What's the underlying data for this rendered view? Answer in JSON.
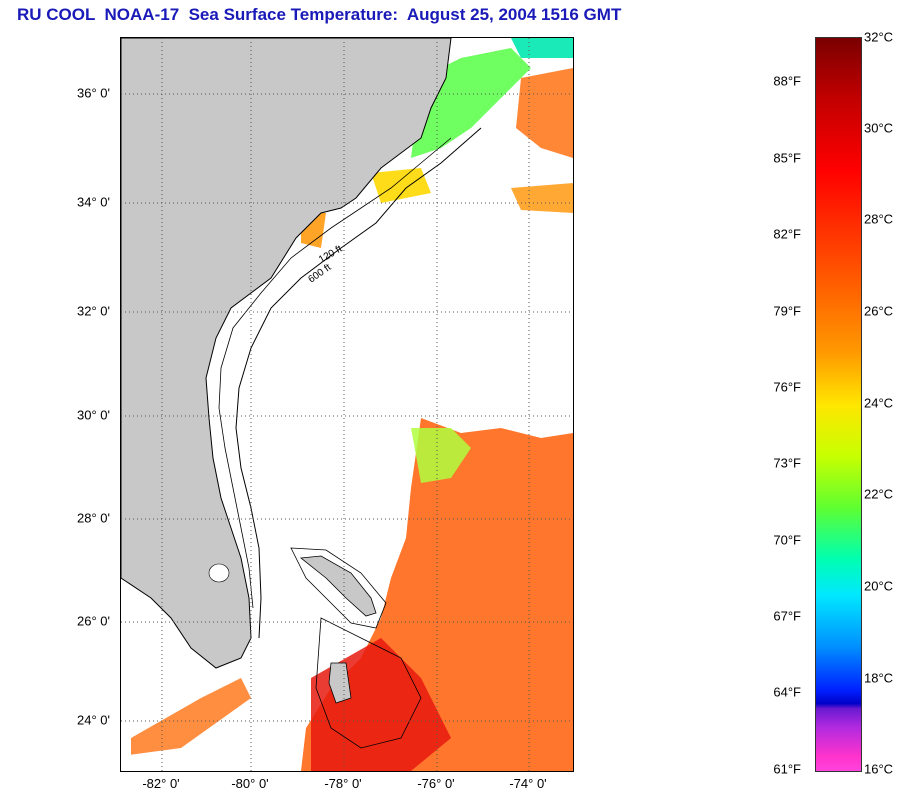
{
  "title": "RU COOL  NOAA-17  Sea Surface Temperature:  August 25, 2004 1516 GMT",
  "map": {
    "latitude_labels": [
      "36° 0'",
      "34° 0'",
      "32° 0'",
      "30° 0'",
      "28° 0'",
      "26° 0'",
      "24° 0'"
    ],
    "longitude_labels": [
      "-82° 0'",
      "-80° 0'",
      "-78° 0'",
      "-76° 0'",
      "-74° 0'"
    ],
    "contour_labels": [
      "600 ft",
      "120 ft"
    ],
    "colors": {
      "land": "#c8c8c8",
      "ocean_no_data": "#ffffff",
      "sst_warm": "#ff6a1a",
      "sst_mid": "#ffe000",
      "sst_cool": "#00e8a0"
    }
  },
  "colorbar": {
    "fahrenheit_labels": [
      "88°F",
      "85°F",
      "82°F",
      "79°F",
      "76°F",
      "73°F",
      "70°F",
      "67°F",
      "64°F",
      "61°F"
    ],
    "celsius_labels": [
      "32°C",
      "30°C",
      "28°C",
      "26°C",
      "24°C",
      "22°C",
      "20°C",
      "18°C",
      "16°C"
    ]
  }
}
